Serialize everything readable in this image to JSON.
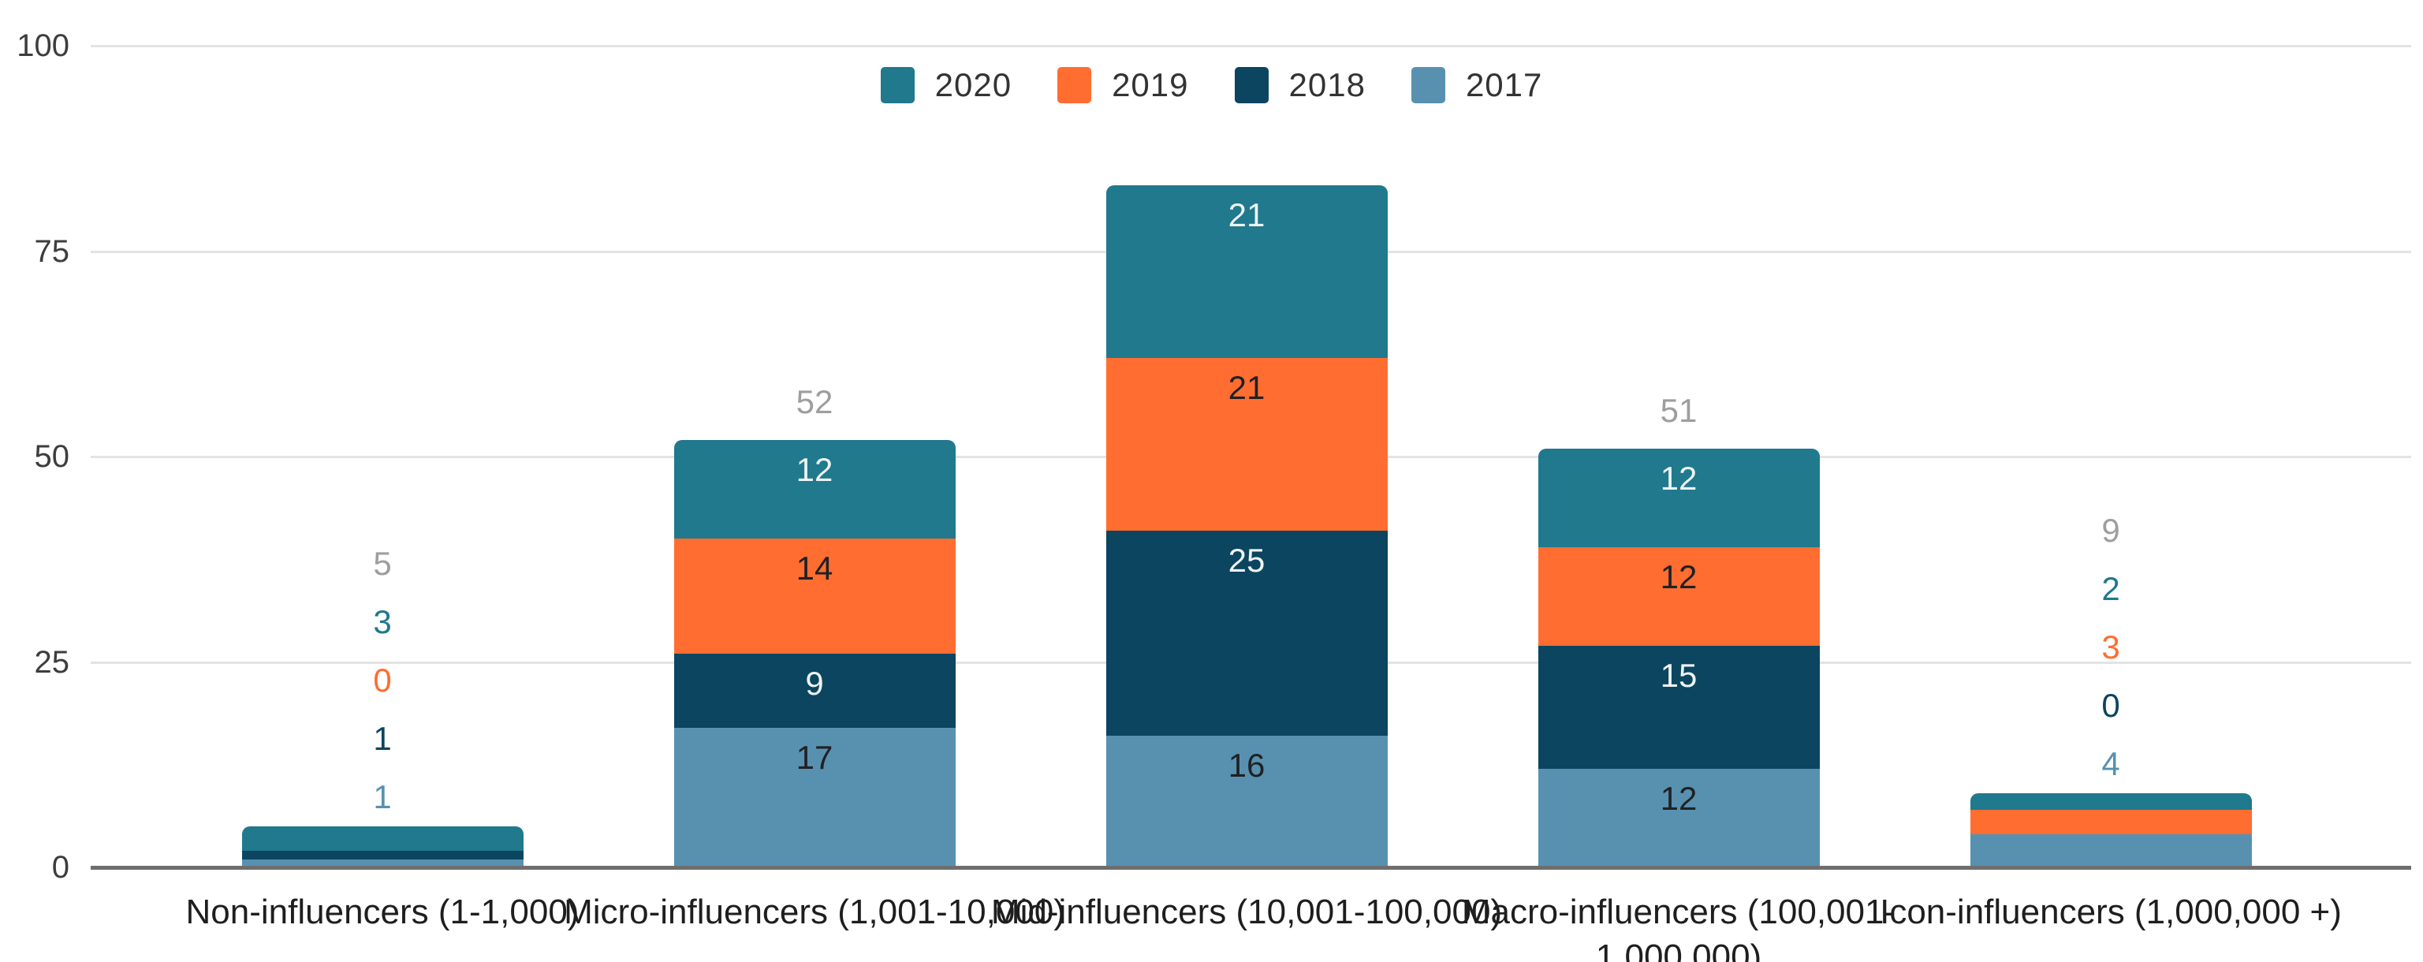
{
  "chart_data": {
    "type": "bar",
    "stacked": true,
    "title": "",
    "xlabel": "",
    "ylabel": "",
    "ylim": [
      0,
      100
    ],
    "yticks": [
      0,
      25,
      50,
      75,
      100
    ],
    "grid": true,
    "legend_position": "top",
    "categories": [
      "Non-influencers (1-1,000)",
      "Micro-influencers (1,001-10,000)",
      "Mid-influencers (10,001-100,000)",
      "Macro-influencers (100,001-1,000,000)",
      "Icon-influencers (1,000,000 +)"
    ],
    "series": [
      {
        "name": "2020",
        "color": "#20798c",
        "label_color": "#eef3f5",
        "values": [
          3,
          12,
          21,
          12,
          2
        ]
      },
      {
        "name": "2019",
        "color": "#ff6d31",
        "label_color": "#1f2124",
        "values": [
          0,
          14,
          21,
          12,
          3
        ]
      },
      {
        "name": "2018",
        "color": "#0b4560",
        "label_color": "#eef3f5",
        "values": [
          1,
          9,
          25,
          15,
          0
        ]
      },
      {
        "name": "2017",
        "color": "#5891b0",
        "label_color": "#1f2124",
        "values": [
          1,
          17,
          16,
          12,
          4
        ]
      }
    ],
    "totals": [
      5,
      52,
      83,
      51,
      9
    ],
    "total_labels_shown": [
      true,
      true,
      false,
      true,
      true
    ],
    "label_mode": [
      "outside",
      "inside",
      "inside",
      "inside",
      "outside"
    ],
    "colors": {
      "background": "#ffffff",
      "grid": "#e3e3e3",
      "baseline": "#6e6e6e",
      "tick_label": "#3d3d3d",
      "category_label": "#1e1e1e",
      "legend_label": "#333333",
      "total_label": "#9e9e9e"
    }
  }
}
